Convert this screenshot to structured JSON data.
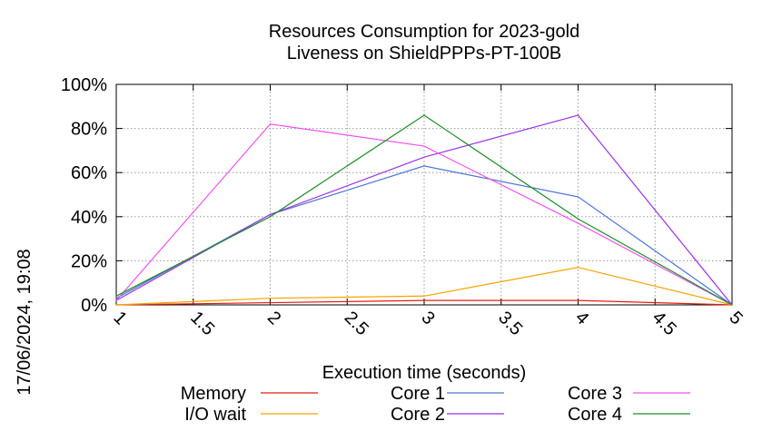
{
  "chart_data": {
    "type": "line",
    "title": [
      "Resources Consumption for 2023-gold",
      "Liveness on ShieldPPPs-PT-100B"
    ],
    "xlabel": "Execution time (seconds)",
    "ylabel": "",
    "side_label": "17/06/2024, 19:08",
    "xlim": [
      1,
      5
    ],
    "ylim": [
      0,
      100
    ],
    "x_ticks": [
      {
        "value": 1,
        "label": "1"
      },
      {
        "value": 1.5,
        "label": "1.5"
      },
      {
        "value": 2,
        "label": "2"
      },
      {
        "value": 2.5,
        "label": "2.5"
      },
      {
        "value": 3,
        "label": "3"
      },
      {
        "value": 3.5,
        "label": "3.5"
      },
      {
        "value": 4,
        "label": "4"
      },
      {
        "value": 4.5,
        "label": "4.5"
      },
      {
        "value": 5,
        "label": "5"
      }
    ],
    "y_ticks": [
      {
        "value": 0,
        "label": "0%"
      },
      {
        "value": 20,
        "label": "20%"
      },
      {
        "value": 40,
        "label": "40%"
      },
      {
        "value": 60,
        "label": "60%"
      },
      {
        "value": 80,
        "label": "80%"
      },
      {
        "value": 100,
        "label": "100%"
      }
    ],
    "grid": true,
    "legend_position": "bottom",
    "x": [
      1,
      2,
      3,
      4,
      5
    ],
    "series": [
      {
        "name": "Memory",
        "color": "#e51e10",
        "values": [
          0,
          1,
          2,
          2,
          0
        ]
      },
      {
        "name": "I/O wait",
        "color": "#f4a300",
        "values": [
          0,
          3,
          4,
          17,
          0
        ]
      },
      {
        "name": "Core 1",
        "color": "#4f74d6",
        "values": [
          3,
          41,
          63,
          49,
          0
        ]
      },
      {
        "name": "Core 2",
        "color": "#9b30e8",
        "values": [
          2,
          41,
          67,
          86,
          0
        ]
      },
      {
        "name": "Core 3",
        "color": "#f050f0",
        "values": [
          2,
          82,
          72,
          37,
          0
        ]
      },
      {
        "name": "Core 4",
        "color": "#1e8c28",
        "values": [
          4,
          40,
          86,
          39,
          0
        ]
      }
    ]
  }
}
